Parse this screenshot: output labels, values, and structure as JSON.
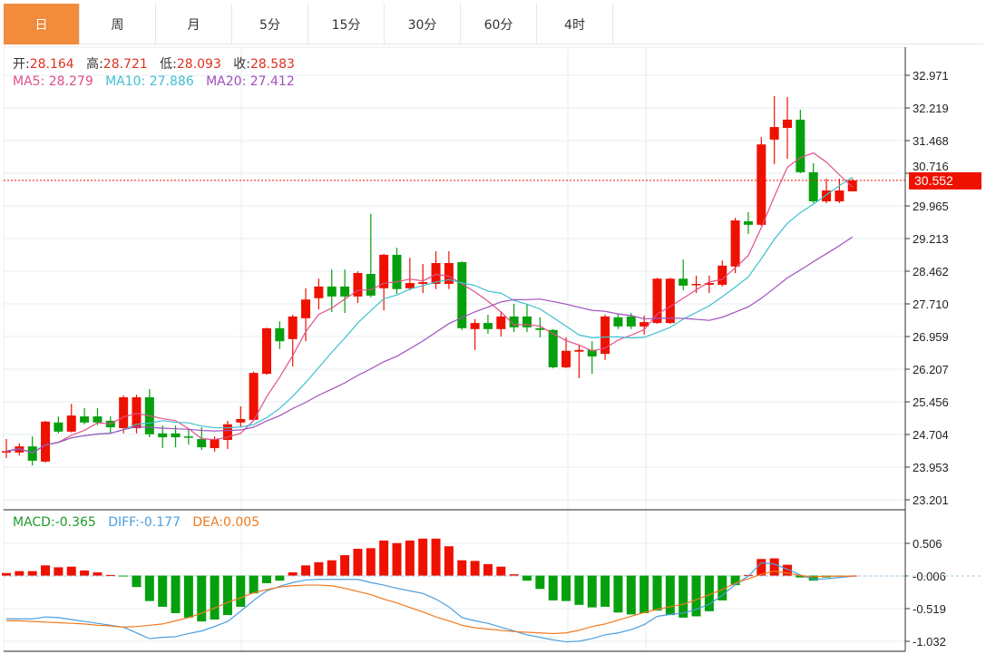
{
  "tabs": [
    "日",
    "周",
    "月",
    "5分",
    "15分",
    "30分",
    "60分",
    "4时"
  ],
  "active_tab": 0,
  "info": {
    "open_label": "开:",
    "open": "28.164",
    "high_label": "高:",
    "high": "28.721",
    "low_label": "低:",
    "low": "28.093",
    "close_label": "收:",
    "close": "28.583",
    "ma5_label": "MA5:",
    "ma5": "28.279",
    "ma10_label": "MA10:",
    "ma10": "27.886",
    "ma20_label": "MA20:",
    "ma20": "27.412"
  },
  "macd_info": {
    "macd_label": "MACD:",
    "macd": "-0.365",
    "diff_label": "DIFF:",
    "diff": "-0.177",
    "dea_label": "DEA:",
    "dea": "0.005"
  },
  "colors": {
    "up": "#ee1100",
    "down": "#06a00e",
    "ma5": "#e0508a",
    "ma10": "#3ec0d0",
    "ma20": "#a050c0",
    "diff": "#4a9ee0",
    "dea": "#f07a20",
    "tab_active": "#f38b3c"
  },
  "chart_data": [
    {
      "type": "candlestick",
      "title": "Price",
      "yticks": [
        "32.971",
        "32.219",
        "31.468",
        "30.716",
        "29.965",
        "29.213",
        "28.462",
        "27.710",
        "26.959",
        "26.207",
        "25.456",
        "24.704",
        "23.953",
        "23.201"
      ],
      "ylim": [
        23.201,
        32.971
      ],
      "last_price": "30.552",
      "ohlc": [
        [
          24.3,
          24.6,
          24.16,
          24.32
        ],
        [
          24.29,
          24.5,
          24.22,
          24.43
        ],
        [
          24.43,
          24.66,
          23.99,
          24.1
        ],
        [
          24.08,
          25.02,
          24.06,
          25.0
        ],
        [
          24.98,
          25.12,
          24.73,
          24.77
        ],
        [
          24.77,
          25.41,
          24.75,
          25.14
        ],
        [
          25.12,
          25.31,
          24.94,
          24.98
        ],
        [
          25.12,
          25.31,
          24.92,
          24.98
        ],
        [
          25.02,
          25.12,
          24.73,
          24.87
        ],
        [
          24.85,
          25.6,
          24.73,
          25.56
        ],
        [
          24.85,
          25.62,
          24.73,
          25.56
        ],
        [
          25.56,
          25.75,
          24.64,
          24.71
        ],
        [
          24.73,
          24.91,
          24.39,
          24.64
        ],
        [
          24.73,
          24.91,
          24.41,
          24.64
        ],
        [
          24.66,
          24.81,
          24.47,
          24.64
        ],
        [
          24.6,
          24.87,
          24.35,
          24.41
        ],
        [
          24.39,
          24.66,
          24.31,
          24.6
        ],
        [
          24.58,
          25.02,
          24.37,
          24.94
        ],
        [
          24.98,
          25.35,
          24.89,
          25.06
        ],
        [
          25.04,
          26.15,
          25.02,
          26.12
        ],
        [
          26.1,
          27.16,
          26.08,
          27.15
        ],
        [
          27.15,
          27.31,
          26.67,
          26.85
        ],
        [
          26.9,
          27.46,
          26.27,
          27.42
        ],
        [
          27.38,
          28.07,
          26.85,
          27.81
        ],
        [
          27.84,
          28.29,
          27.58,
          28.11
        ],
        [
          28.11,
          28.5,
          27.52,
          27.88
        ],
        [
          28.11,
          28.5,
          27.5,
          27.88
        ],
        [
          27.88,
          28.46,
          27.73,
          28.42
        ],
        [
          28.4,
          29.78,
          27.86,
          27.9
        ],
        [
          28.07,
          28.86,
          27.56,
          28.84
        ],
        [
          28.84,
          29.0,
          27.94,
          28.05
        ],
        [
          28.07,
          28.77,
          28.02,
          28.19
        ],
        [
          28.17,
          28.63,
          27.96,
          28.21
        ],
        [
          28.17,
          28.92,
          28.05,
          28.65
        ],
        [
          28.17,
          28.92,
          28.05,
          28.65
        ],
        [
          28.67,
          28.69,
          27.11,
          27.15
        ],
        [
          27.13,
          27.36,
          26.65,
          27.27
        ],
        [
          27.27,
          27.46,
          27.02,
          27.13
        ],
        [
          27.13,
          27.54,
          26.96,
          27.42
        ],
        [
          27.42,
          27.71,
          27.06,
          27.17
        ],
        [
          27.42,
          27.69,
          27.06,
          27.17
        ],
        [
          27.15,
          27.4,
          26.94,
          27.11
        ],
        [
          27.11,
          27.13,
          26.23,
          26.25
        ],
        [
          26.25,
          26.94,
          26.23,
          26.63
        ],
        [
          26.61,
          26.77,
          26.0,
          26.65
        ],
        [
          26.65,
          26.85,
          26.1,
          26.5
        ],
        [
          26.56,
          27.46,
          26.42,
          27.42
        ],
        [
          27.4,
          27.48,
          27.13,
          27.19
        ],
        [
          27.42,
          27.5,
          27.13,
          27.19
        ],
        [
          27.19,
          27.44,
          27.0,
          27.29
        ],
        [
          27.27,
          28.31,
          27.25,
          28.29
        ],
        [
          27.27,
          28.31,
          27.25,
          28.29
        ],
        [
          28.29,
          28.73,
          28.02,
          28.13
        ],
        [
          28.15,
          28.36,
          27.96,
          28.17
        ],
        [
          28.15,
          28.36,
          27.96,
          28.19
        ],
        [
          28.15,
          28.71,
          28.11,
          28.59
        ],
        [
          28.57,
          29.69,
          28.42,
          29.63
        ],
        [
          29.61,
          29.82,
          29.32,
          29.53
        ],
        [
          29.53,
          31.55,
          29.51,
          31.38
        ],
        [
          31.49,
          32.49,
          30.93,
          31.78
        ],
        [
          31.76,
          32.47,
          31.05,
          31.95
        ],
        [
          31.95,
          32.18,
          30.72,
          30.74
        ],
        [
          30.74,
          30.95,
          30.03,
          30.07
        ],
        [
          30.07,
          30.59,
          30.03,
          30.32
        ],
        [
          30.07,
          30.59,
          30.03,
          30.32
        ],
        [
          30.3,
          30.59,
          30.3,
          30.55
        ]
      ],
      "ma_periods": [
        5,
        10,
        20
      ]
    },
    {
      "type": "bar+line",
      "title": "MACD",
      "yticks": [
        "0.506",
        "-0.006",
        "-0.519",
        "-1.032"
      ],
      "ylim": [
        -1.032,
        0.506
      ],
      "macd": [
        0.04,
        0.07,
        0.07,
        0.16,
        0.13,
        0.14,
        0.08,
        0.05,
        0.01,
        -0.01,
        -0.18,
        -0.4,
        -0.49,
        -0.59,
        -0.66,
        -0.72,
        -0.69,
        -0.62,
        -0.49,
        -0.28,
        -0.12,
        -0.08,
        0.05,
        0.16,
        0.21,
        0.24,
        0.32,
        0.42,
        0.43,
        0.55,
        0.51,
        0.55,
        0.58,
        0.58,
        0.46,
        0.24,
        0.23,
        0.18,
        0.14,
        0.02,
        -0.08,
        -0.21,
        -0.39,
        -0.4,
        -0.46,
        -0.5,
        -0.49,
        -0.58,
        -0.61,
        -0.59,
        -0.55,
        -0.62,
        -0.66,
        -0.64,
        -0.56,
        -0.39,
        -0.15,
        0.01,
        0.26,
        0.27,
        0.17,
        -0.03,
        -0.08,
        -0.03,
        -0.01,
        0.0
      ],
      "diff": [
        -0.68,
        -0.68,
        -0.68,
        -0.65,
        -0.66,
        -0.69,
        -0.72,
        -0.75,
        -0.78,
        -0.81,
        -0.9,
        -0.99,
        -0.97,
        -0.96,
        -0.91,
        -0.87,
        -0.8,
        -0.72,
        -0.56,
        -0.39,
        -0.24,
        -0.17,
        -0.11,
        -0.07,
        -0.06,
        -0.06,
        -0.06,
        -0.06,
        -0.11,
        -0.15,
        -0.2,
        -0.24,
        -0.28,
        -0.37,
        -0.49,
        -0.66,
        -0.71,
        -0.75,
        -0.81,
        -0.87,
        -0.93,
        -0.97,
        -1.01,
        -1.04,
        -1.03,
        -0.99,
        -0.93,
        -0.9,
        -0.85,
        -0.77,
        -0.64,
        -0.61,
        -0.59,
        -0.53,
        -0.45,
        -0.31,
        -0.14,
        -0.01,
        0.2,
        0.18,
        0.1,
        0.01,
        -0.06,
        -0.05,
        -0.03,
        -0.01
      ],
      "dea": [
        -0.71,
        -0.71,
        -0.72,
        -0.73,
        -0.74,
        -0.75,
        -0.76,
        -0.78,
        -0.79,
        -0.81,
        -0.8,
        -0.78,
        -0.76,
        -0.71,
        -0.66,
        -0.59,
        -0.51,
        -0.42,
        -0.35,
        -0.27,
        -0.22,
        -0.18,
        -0.16,
        -0.15,
        -0.15,
        -0.16,
        -0.2,
        -0.25,
        -0.3,
        -0.37,
        -0.43,
        -0.5,
        -0.57,
        -0.65,
        -0.71,
        -0.78,
        -0.82,
        -0.84,
        -0.86,
        -0.88,
        -0.89,
        -0.9,
        -0.91,
        -0.9,
        -0.86,
        -0.8,
        -0.76,
        -0.7,
        -0.64,
        -0.58,
        -0.53,
        -0.49,
        -0.45,
        -0.38,
        -0.3,
        -0.22,
        -0.12,
        -0.05,
        0.02,
        0.07,
        0.04,
        0.0,
        -0.02,
        -0.01,
        -0.01,
        -0.01
      ]
    }
  ]
}
